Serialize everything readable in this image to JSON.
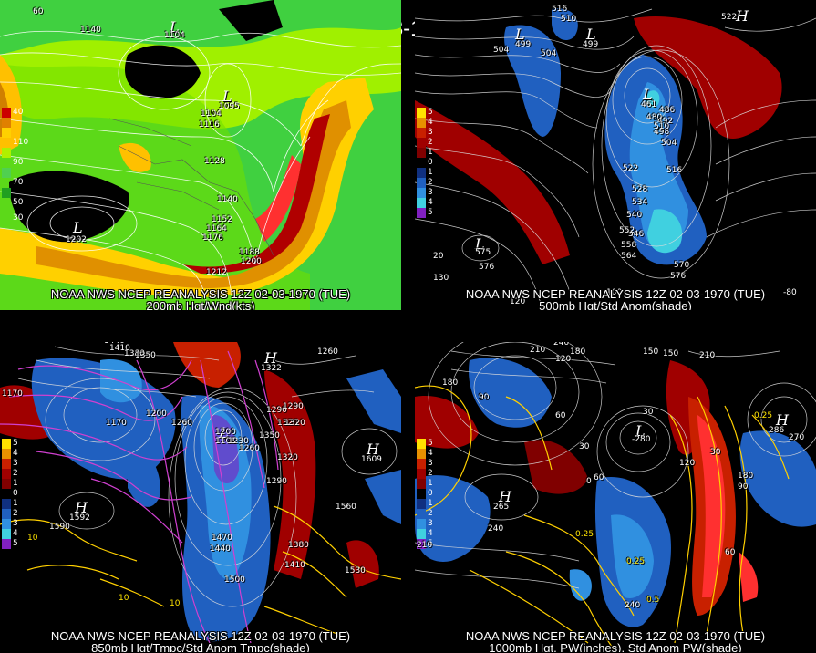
{
  "title": "12Z 02-03-1970 (TUE)",
  "panels": [
    {
      "caption1": "NOAA NWS NCEP REANALYSIS 12Z 02-03-1970 (TUE)",
      "caption2": "200mb Hgt/Wnd(kts)",
      "legend": [
        "40",
        "110",
        "90",
        "70",
        "50",
        "30"
      ],
      "legend_colors": [
        "#cc0000",
        "#e08000",
        "#ffd000",
        "#b0f000",
        "#50d050",
        "#20a020"
      ],
      "centers": [
        {
          "t": "L",
          "v": "1202"
        },
        {
          "t": "L",
          "v": "1095"
        },
        {
          "t": "L",
          "v": "1104"
        }
      ],
      "labels": [
        "1104",
        "1116",
        "1128",
        "1140",
        "1152",
        "1164",
        "1176",
        "1188",
        "1200",
        "1212",
        "1140",
        "60"
      ]
    },
    {
      "caption1": "NOAA NWS NCEP REANALYSIS 12Z 02-03-1970 (TUE)",
      "caption2": "500mb Hgt/Std Anom(shade)",
      "legend": [
        "5",
        "4",
        "3",
        "2",
        "1",
        "0",
        "1",
        "2",
        "3",
        "4",
        "5"
      ],
      "legend_colors": [
        "#ffe000",
        "#e89000",
        "#c82000",
        "#a00000",
        "#800000",
        "#000000",
        "#103080",
        "#2060c0",
        "#3090e0",
        "#40d0e0",
        "#8020c0"
      ],
      "centers": [
        {
          "t": "L",
          "v": "575"
        },
        {
          "t": "L",
          "v": "461"
        },
        {
          "t": "L",
          "v": "499"
        },
        {
          "t": "L",
          "v": "499"
        },
        {
          "t": "H",
          "v": "522"
        }
      ],
      "labels": [
        "504",
        "516",
        "510",
        "504",
        "480",
        "486",
        "492",
        "498",
        "504",
        "510",
        "516",
        "522",
        "528",
        "534",
        "540",
        "546",
        "552",
        "558",
        "564",
        "570",
        "576",
        "576",
        "20",
        "130",
        "120",
        "100",
        "-80"
      ]
    },
    {
      "caption1": "NOAA NWS NCEP REANALYSIS 12Z 02-03-1970 (TUE)",
      "caption2": "850mb Hgt/Tmpc/Std Anom Tmpc(shade)",
      "legend": [
        "5",
        "4",
        "3",
        "2",
        "1",
        "0",
        "1",
        "2",
        "3",
        "4",
        "5"
      ],
      "legend_colors": [
        "#ffe000",
        "#e89000",
        "#c82000",
        "#a00000",
        "#800000",
        "#000000",
        "#103080",
        "#2060c0",
        "#3090e0",
        "#40d0e0",
        "#8020c0"
      ],
      "centers": [
        {
          "t": "H",
          "v": "1592"
        },
        {
          "t": "H",
          "v": "1609"
        },
        {
          "t": "H",
          "v": "1322"
        },
        {
          "t": "L",
          "v": "1101"
        }
      ],
      "labels": [
        "1440",
        "1410",
        "1380",
        "1350",
        "1170",
        "1200",
        "1260",
        "1290",
        "1320",
        "1170",
        "1200",
        "1230",
        "1260",
        "1290",
        "1320",
        "1350",
        "1380",
        "1410",
        "1440",
        "1470",
        "1500",
        "1530",
        "1560",
        "1590",
        "1260",
        "1290",
        "1320",
        "10",
        "10",
        "10"
      ]
    },
    {
      "caption1": "NOAA NWS NCEP REANALYSIS 12Z 02-03-1970 (TUE)",
      "caption2": "1000mb Hgt, PW(inches), Std Anom PW(shade)",
      "legend": [
        "5",
        "4",
        "3",
        "2",
        "1",
        "0",
        "1",
        "2",
        "3",
        "4",
        "5"
      ],
      "legend_colors": [
        "#ffe000",
        "#e89000",
        "#c82000",
        "#a00000",
        "#800000",
        "#000000",
        "#103080",
        "#2060c0",
        "#3090e0",
        "#40d0e0",
        "#8020c0"
      ],
      "centers": [
        {
          "t": "H",
          "v": "265"
        },
        {
          "t": "L",
          "v": "-280"
        },
        {
          "t": "H",
          "v": "286"
        }
      ],
      "labels": [
        "240",
        "210",
        "180",
        "150",
        "120",
        "90",
        "60",
        "30",
        "0",
        "30",
        "60",
        "90",
        "120",
        "150",
        "180",
        "210",
        "240",
        "210",
        "180",
        "0.25",
        "0.25",
        "0.5",
        "0.25",
        "240",
        "270",
        "30",
        "60"
      ]
    }
  ]
}
